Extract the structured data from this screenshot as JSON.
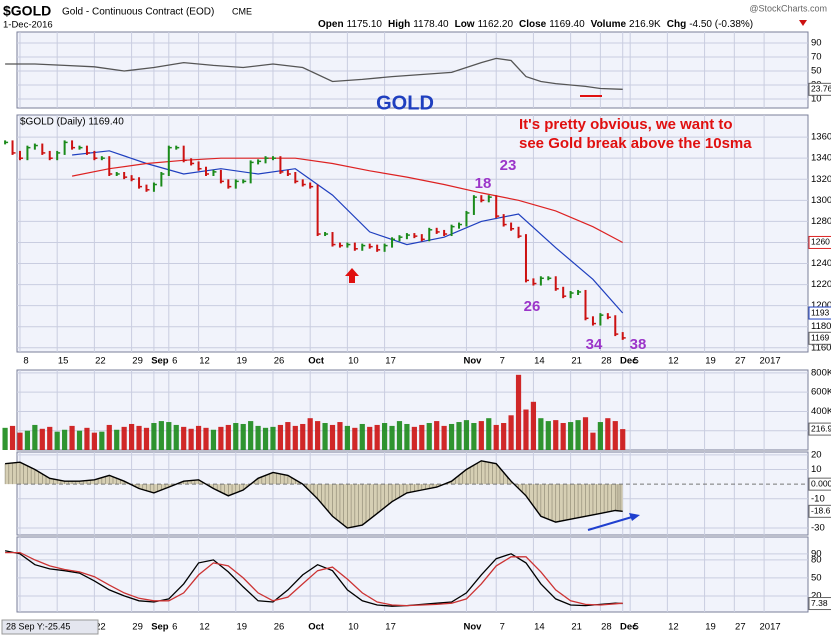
{
  "header": {
    "symbol": "$GOLD",
    "name": "Gold - Continuous Contract (EOD)",
    "exchange": "CME",
    "brand": "@StockCharts.com",
    "date": "1-Dec-2016",
    "fields": [
      {
        "label": "Open",
        "value": "1175.10"
      },
      {
        "label": "High",
        "value": "1178.40"
      },
      {
        "label": "Low",
        "value": "1162.20"
      },
      {
        "label": "Close",
        "value": "1169.40"
      },
      {
        "label": "Volume",
        "value": "216.9K"
      },
      {
        "label": "Chg",
        "value": "-4.50 (-0.38%)"
      }
    ]
  },
  "chart_data": [
    {
      "type": "line",
      "annotation": "GOLD",
      "ylim": [
        -2.9,
        105.7
      ],
      "yticks": [
        10,
        30,
        50,
        70,
        90
      ],
      "color": "#555555",
      "x": [
        0,
        4,
        8,
        12,
        16,
        20,
        24,
        28,
        32,
        36,
        40,
        44,
        48,
        52,
        56,
        60,
        64,
        66,
        68,
        70,
        72,
        74,
        78,
        80,
        83
      ],
      "values": [
        60,
        60,
        58,
        56,
        50,
        55,
        62,
        58,
        55,
        60,
        55,
        35,
        38,
        42,
        45,
        48,
        62,
        68,
        65,
        42,
        35,
        32,
        28,
        25,
        23.76
      ],
      "last": 23.76
    },
    {
      "type": "price",
      "title": "$GOLD (Daily) 1169.40",
      "annotation": [
        "It's pretty obvious, we want to",
        "see Gold break above the 10sma"
      ],
      "cycle_labels": [
        "18",
        "23",
        "26",
        "34",
        "38"
      ],
      "xlim": [
        1.6,
        107.9
      ],
      "xticks": [
        {
          "value": 2,
          "label": "8"
        },
        {
          "value": 7,
          "label": "15"
        },
        {
          "value": 12,
          "label": "22"
        },
        {
          "value": 17,
          "label": "29"
        },
        {
          "value": 20,
          "label": "Sep"
        },
        {
          "value": 22,
          "label": "6"
        },
        {
          "value": 26,
          "label": "12"
        },
        {
          "value": 31,
          "label": "19"
        },
        {
          "value": 36,
          "label": "26"
        },
        {
          "value": 41,
          "label": "Oct"
        },
        {
          "value": 46,
          "label": "10"
        },
        {
          "value": 51,
          "label": "17"
        },
        {
          "value": 62,
          "label": "Nov"
        },
        {
          "value": 66,
          "label": "7"
        },
        {
          "value": 71,
          "label": "14"
        },
        {
          "value": 76,
          "label": "21"
        },
        {
          "value": 80,
          "label": "28"
        },
        {
          "value": 83,
          "label": "Dec"
        },
        {
          "value": 84,
          "label": "5"
        },
        {
          "value": 89,
          "label": "12"
        },
        {
          "value": 94,
          "label": "19"
        },
        {
          "value": 98,
          "label": "27"
        },
        {
          "value": 102,
          "label": "2017"
        }
      ],
      "ylim": [
        1156,
        1381
      ],
      "yticks": [
        1160,
        1180,
        1200,
        1220,
        1240,
        1260,
        1280,
        1300,
        1320,
        1340,
        1360
      ],
      "up_color": "#1a8a1a",
      "down_color": "#cc1111",
      "values": [
        1355,
        1345,
        1340,
        1350,
        1352,
        1345,
        1340,
        1345,
        1355,
        1350,
        1350,
        1345,
        1340,
        1340,
        1325,
        1325,
        1322,
        1320,
        1313,
        1310,
        1315,
        1325,
        1350,
        1350,
        1338,
        1335,
        1330,
        1325,
        1327,
        1318,
        1313,
        1318,
        1318,
        1336,
        1337,
        1340,
        1340,
        1327,
        1325,
        1318,
        1315,
        1313,
        1268,
        1268,
        1258,
        1257,
        1258,
        1254,
        1257,
        1256,
        1253,
        1257,
        1263,
        1265,
        1267,
        1266,
        1263,
        1272,
        1270,
        1268,
        1275,
        1277,
        1288,
        1303,
        1300,
        1303,
        1285,
        1277,
        1273,
        1266,
        1224,
        1221,
        1226,
        1226,
        1216,
        1209,
        1212,
        1213,
        1188,
        1183,
        1191,
        1189,
        1173,
        1169.4
      ],
      "last": 1169,
      "series": [
        {
          "color": "#1f3fbf",
          "x": [
            9,
            14,
            19,
            24,
            29,
            34,
            39,
            44,
            49,
            54,
            59,
            64,
            69,
            74,
            79,
            83
          ],
          "values": [
            1343,
            1347,
            1335,
            1325,
            1330,
            1325,
            1330,
            1305,
            1270,
            1258,
            1265,
            1280,
            1287,
            1255,
            1225,
            1193
          ],
          "last": 1193
        },
        {
          "color": "#dd2222",
          "x": [
            9,
            14,
            19,
            24,
            29,
            34,
            39,
            44,
            49,
            54,
            59,
            64,
            69,
            74,
            79,
            83
          ],
          "values": [
            1323,
            1330,
            1335,
            1338,
            1340,
            1340,
            1340,
            1335,
            1328,
            1322,
            1315,
            1307,
            1300,
            1290,
            1275,
            1260
          ],
          "last": 1260
        }
      ]
    },
    {
      "type": "bar",
      "ylim": [
        0,
        830000
      ],
      "yticks": [
        {
          "value": 200000,
          "label": "200K"
        },
        {
          "value": 400000,
          "label": "400K"
        },
        {
          "value": 600000,
          "label": "600K"
        },
        {
          "value": 800000,
          "label": "800K"
        }
      ],
      "values": [
        230000,
        250000,
        180000,
        200000,
        260000,
        220000,
        240000,
        190000,
        210000,
        250000,
        200000,
        230000,
        180000,
        190000,
        260000,
        210000,
        240000,
        270000,
        250000,
        230000,
        280000,
        300000,
        290000,
        260000,
        240000,
        220000,
        250000,
        230000,
        210000,
        240000,
        260000,
        280000,
        270000,
        300000,
        250000,
        230000,
        240000,
        260000,
        290000,
        250000,
        270000,
        330000,
        300000,
        280000,
        260000,
        290000,
        250000,
        230000,
        270000,
        240000,
        260000,
        280000,
        250000,
        300000,
        270000,
        240000,
        260000,
        280000,
        300000,
        250000,
        270000,
        290000,
        310000,
        280000,
        300000,
        330000,
        260000,
        280000,
        360000,
        780000,
        420000,
        500000,
        330000,
        300000,
        310000,
        280000,
        290000,
        310000,
        340000,
        180000,
        290000,
        330000,
        300000,
        216900
      ],
      "last": {
        "value": 216900,
        "label": "216.9K"
      }
    },
    {
      "type": "area",
      "ylim": [
        -34.8,
        22
      ],
      "yticks": [
        20,
        10,
        -10,
        -30
      ],
      "color": "#d6cfb4",
      "zero_label": {
        "value": 0,
        "label": "0.000"
      },
      "x": [
        0,
        2,
        4,
        6,
        8,
        10,
        12,
        14,
        16,
        18,
        20,
        22,
        24,
        26,
        28,
        30,
        32,
        34,
        36,
        38,
        40,
        42,
        44,
        46,
        48,
        50,
        52,
        54,
        56,
        58,
        60,
        62,
        64,
        66,
        68,
        70,
        72,
        74,
        76,
        78,
        80,
        82,
        83
      ],
      "values": [
        14,
        15,
        10,
        4,
        2,
        2,
        3,
        6,
        2,
        -3,
        -6,
        -2,
        2,
        3,
        -3,
        -8,
        -4,
        4,
        8,
        6,
        0,
        -10,
        -22,
        -30,
        -28,
        -20,
        -12,
        -6,
        -4,
        -2,
        2,
        10,
        16,
        14,
        2,
        -8,
        -22,
        -26,
        -24,
        -22,
        -20,
        -18,
        -18.6
      ],
      "last": -18.6
    },
    {
      "type": "line",
      "ylim": [
        -6.7,
        118
      ],
      "yticks": [
        20,
        50,
        80,
        90
      ],
      "cursor_label": "28 Sep Y:-25.45",
      "series": [
        {
          "color": "#000000",
          "x": [
            0,
            2,
            4,
            6,
            8,
            10,
            12,
            14,
            16,
            18,
            20,
            22,
            24,
            26,
            28,
            30,
            32,
            34,
            36,
            38,
            40,
            42,
            44,
            46,
            48,
            50,
            52,
            54,
            56,
            58,
            60,
            62,
            64,
            66,
            68,
            70,
            72,
            74,
            76,
            78,
            80,
            82,
            83
          ],
          "values": [
            95,
            90,
            72,
            65,
            62,
            58,
            45,
            30,
            20,
            12,
            10,
            15,
            40,
            75,
            80,
            60,
            35,
            12,
            10,
            30,
            55,
            72,
            62,
            30,
            12,
            5,
            3,
            4,
            6,
            8,
            10,
            25,
            55,
            82,
            90,
            75,
            40,
            15,
            5,
            4,
            6,
            8,
            7.38
          ]
        },
        {
          "color": "#cc3333",
          "x": [
            0,
            2,
            4,
            6,
            8,
            10,
            12,
            14,
            16,
            18,
            20,
            22,
            24,
            26,
            28,
            30,
            32,
            34,
            36,
            38,
            40,
            42,
            44,
            46,
            48,
            50,
            52,
            54,
            56,
            58,
            60,
            62,
            64,
            66,
            68,
            70,
            72,
            74,
            76,
            78,
            80,
            82,
            83
          ],
          "values": [
            92,
            92,
            80,
            70,
            64,
            60,
            52,
            38,
            25,
            16,
            12,
            12,
            25,
            55,
            75,
            70,
            50,
            25,
            12,
            18,
            40,
            62,
            68,
            48,
            25,
            10,
            5,
            4,
            5,
            6,
            8,
            15,
            40,
            70,
            85,
            85,
            60,
            30,
            12,
            6,
            5,
            7,
            8
          ]
        }
      ],
      "last": 7.38
    }
  ]
}
